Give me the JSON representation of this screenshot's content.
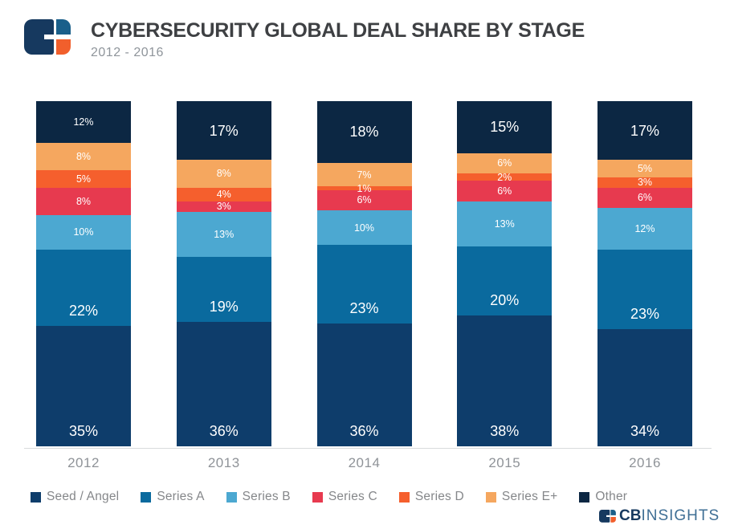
{
  "header": {
    "title": "CYBERSECURITY GLOBAL DEAL SHARE BY STAGE",
    "subtitle": "2012 - 2016"
  },
  "chart_data": {
    "type": "bar",
    "stacked": true,
    "unit": "%",
    "title": "CYBERSECURITY GLOBAL DEAL SHARE BY STAGE",
    "subtitle": "2012 - 2016",
    "categories": [
      "2012",
      "2013",
      "2014",
      "2015",
      "2016"
    ],
    "series": [
      {
        "name": "Seed / Angel",
        "color": "#0e3d6b",
        "values": [
          35,
          36,
          36,
          38,
          34
        ],
        "label_vertical_align": "bottom"
      },
      {
        "name": "Series A",
        "color": "#0a6a9e",
        "values": [
          22,
          19,
          23,
          20,
          23
        ],
        "label_vertical_align": "bottom"
      },
      {
        "name": "Series B",
        "color": "#4ca8d1",
        "values": [
          10,
          13,
          10,
          13,
          12
        ],
        "label_vertical_align": "middle"
      },
      {
        "name": "Series C",
        "color": "#e73a4f",
        "values": [
          8,
          3,
          6,
          6,
          6
        ],
        "label_vertical_align": "middle"
      },
      {
        "name": "Series D",
        "color": "#f55f2d",
        "values": [
          5,
          4,
          1,
          2,
          3
        ],
        "label_vertical_align": "middle"
      },
      {
        "name": "Series E+",
        "color": "#f5a75f",
        "values": [
          8,
          8,
          7,
          6,
          5
        ],
        "label_vertical_align": "middle"
      },
      {
        "name": "Other",
        "color": "#0c2743",
        "values": [
          12,
          17,
          18,
          15,
          17
        ],
        "label_vertical_align": "middle"
      }
    ],
    "ylim": [
      0,
      100
    ],
    "gridlines": false,
    "legend_position": "bottom",
    "value_labels": "inside"
  },
  "branding": {
    "wordmark_bold": "CB",
    "wordmark_light": "INSIGHTS"
  }
}
